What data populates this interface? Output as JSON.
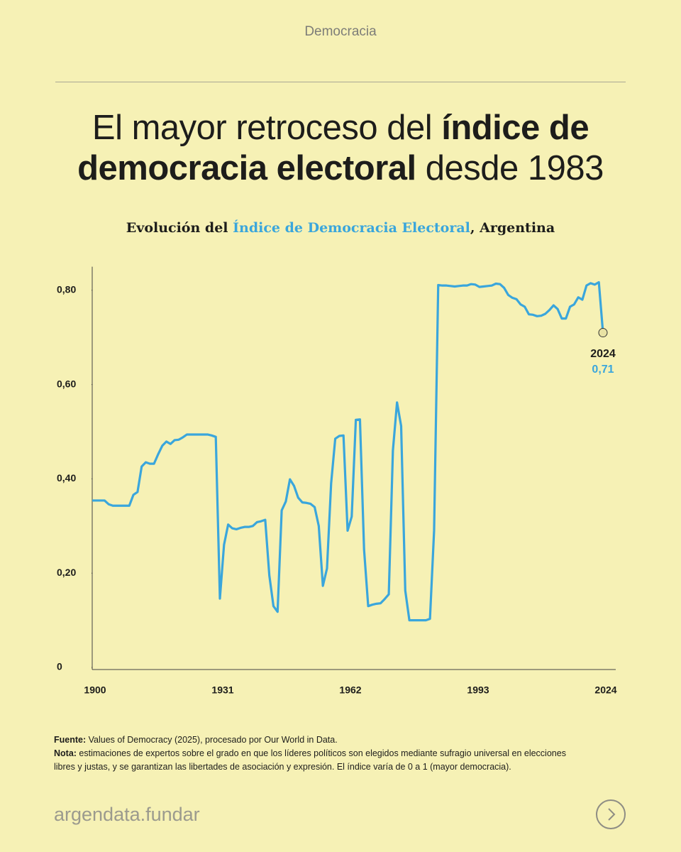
{
  "header": "Democracia",
  "chart_data": {
    "type": "line",
    "title": [
      {
        "text": "El mayor retroceso del ",
        "bold": false
      },
      {
        "text": "índice de democracia electoral",
        "bold": true
      },
      {
        "text": " desde 1983",
        "bold": false
      }
    ],
    "subtitle": [
      {
        "text": "Evolución del ",
        "highlight": false
      },
      {
        "text": "Índice de Democracia Electoral",
        "highlight": true
      },
      {
        "text": ", Argentina",
        "highlight": false
      }
    ],
    "highlight_color": "#3aa6dc",
    "x": [
      1900,
      1901,
      1902,
      1903,
      1904,
      1905,
      1906,
      1907,
      1908,
      1909,
      1910,
      1911,
      1912,
      1913,
      1914,
      1915,
      1916,
      1917,
      1918,
      1919,
      1920,
      1921,
      1922,
      1923,
      1924,
      1925,
      1926,
      1927,
      1928,
      1929,
      1930,
      1931,
      1932,
      1933,
      1934,
      1935,
      1936,
      1937,
      1938,
      1939,
      1940,
      1941,
      1942,
      1943,
      1944,
      1945,
      1946,
      1947,
      1948,
      1949,
      1950,
      1951,
      1952,
      1953,
      1954,
      1955,
      1956,
      1957,
      1958,
      1959,
      1960,
      1961,
      1962,
      1963,
      1964,
      1965,
      1966,
      1967,
      1968,
      1969,
      1970,
      1971,
      1972,
      1973,
      1974,
      1975,
      1976,
      1977,
      1978,
      1979,
      1980,
      1981,
      1982,
      1983,
      1984,
      1985,
      1986,
      1987,
      1988,
      1989,
      1990,
      1991,
      1992,
      1993,
      1994,
      1995,
      1996,
      1997,
      1998,
      1999,
      2000,
      2001,
      2002,
      2003,
      2004,
      2005,
      2006,
      2007,
      2008,
      2009,
      2010,
      2011,
      2012,
      2013,
      2014,
      2015,
      2016,
      2017,
      2018,
      2019,
      2020,
      2021,
      2022,
      2023,
      2024
    ],
    "series": [
      {
        "name": "Índice de Democracia Electoral",
        "color": "#3aa6dc",
        "values": [
          0.354,
          0.354,
          0.354,
          0.354,
          0.346,
          0.343,
          0.343,
          0.343,
          0.343,
          0.343,
          0.366,
          0.372,
          0.426,
          0.435,
          0.432,
          0.432,
          0.452,
          0.47,
          0.479,
          0.474,
          0.482,
          0.483,
          0.488,
          0.494,
          0.494,
          0.494,
          0.494,
          0.494,
          0.494,
          0.492,
          0.489,
          0.146,
          0.26,
          0.303,
          0.295,
          0.293,
          0.296,
          0.298,
          0.298,
          0.3,
          0.308,
          0.31,
          0.313,
          0.195,
          0.13,
          0.118,
          0.333,
          0.352,
          0.399,
          0.385,
          0.36,
          0.35,
          0.349,
          0.347,
          0.34,
          0.3,
          0.173,
          0.21,
          0.39,
          0.485,
          0.491,
          0.492,
          0.29,
          0.32,
          0.525,
          0.526,
          0.25,
          0.13,
          0.133,
          0.135,
          0.136,
          0.145,
          0.155,
          0.46,
          0.562,
          0.512,
          0.163,
          0.1,
          0.1,
          0.1,
          0.1,
          0.1,
          0.103,
          0.29,
          0.811,
          0.81,
          0.81,
          0.809,
          0.808,
          0.809,
          0.81,
          0.81,
          0.813,
          0.812,
          0.807,
          0.808,
          0.809,
          0.81,
          0.814,
          0.813,
          0.805,
          0.79,
          0.784,
          0.781,
          0.77,
          0.765,
          0.749,
          0.748,
          0.745,
          0.746,
          0.75,
          0.758,
          0.768,
          0.76,
          0.74,
          0.74,
          0.765,
          0.77,
          0.785,
          0.78,
          0.81,
          0.815,
          0.812,
          0.817,
          0.71
        ]
      }
    ],
    "xlim": [
      1900,
      2024
    ],
    "xticks": [
      1900,
      1931,
      1962,
      1993,
      2024
    ],
    "ylim": [
      0,
      0.85
    ],
    "yticks": [
      0,
      {
        "value": 0.2,
        "label": "0,20"
      },
      {
        "value": 0.4,
        "label": "0,40"
      },
      {
        "value": 0.6,
        "label": "0,60"
      },
      {
        "value": 0.8,
        "label": "0,80"
      }
    ],
    "annotation": {
      "x": 2024,
      "value": 0.71,
      "label": "0,71"
    }
  },
  "footer": {
    "source_label": "Fuente:",
    "source_text": " Values of Democracy (2025), procesado por Our World in Data.",
    "note_label": "Nota:",
    "note_text": " estimaciones de expertos sobre el grado en que los líderes políticos son elegidos mediante sufragio universal en elecciones libres y justas, y se garantizan las libertades de asociación y expresión. El índice varía de 0 a 1 (mayor democracia)."
  },
  "brand": "argendata.fundar"
}
